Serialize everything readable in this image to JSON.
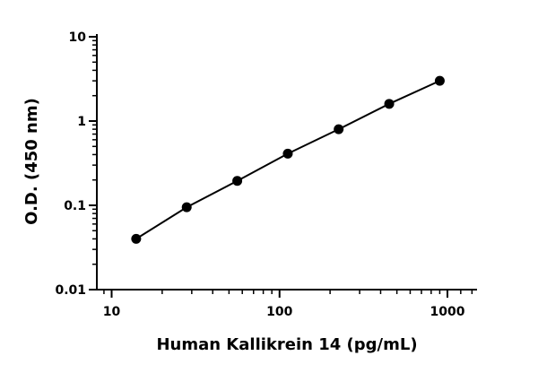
{
  "chart_data": {
    "type": "scatter",
    "title": "",
    "xlabel": "Human Kallikrein 14 (pg/mL)",
    "ylabel": "O.D. (450 nm)",
    "xscale": "log",
    "yscale": "log",
    "xlim": [
      8,
      1500
    ],
    "ylim": [
      0.01,
      10
    ],
    "x_ticks": [
      10,
      100,
      1000
    ],
    "x_tick_labels": [
      "10",
      "100",
      "1000"
    ],
    "y_ticks": [
      0.01,
      0.1,
      1,
      10
    ],
    "y_tick_labels": [
      "0.01",
      "0.1",
      "1",
      "10"
    ],
    "grid": false,
    "legend": false,
    "series": [
      {
        "x": [
          14,
          28,
          56,
          112,
          225,
          450,
          900
        ],
        "y": [
          0.04,
          0.095,
          0.195,
          0.41,
          0.8,
          1.6,
          3.0
        ],
        "color": "#000000",
        "marker": "circle",
        "connected": true
      }
    ]
  }
}
